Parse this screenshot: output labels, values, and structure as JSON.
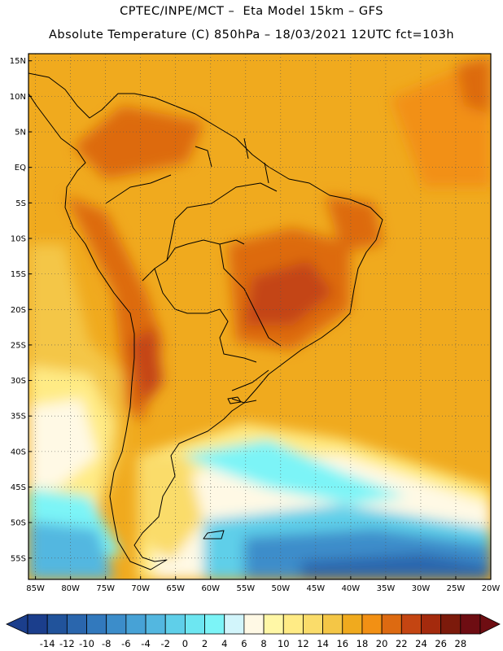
{
  "header": {
    "title_line1": "CPTEC/INPE/MCT –  Eta Model 15km – GFS",
    "title_line2": "Absolute Temperature (C) 850hPa – 18/03/2021 12UTC fct=103h"
  },
  "map": {
    "lat_labels": [
      "15N",
      "10N",
      "5N",
      "EQ",
      "5S",
      "10S",
      "15S",
      "20S",
      "25S",
      "30S",
      "35S",
      "40S",
      "45S",
      "50S",
      "55S"
    ],
    "lon_labels": [
      "85W",
      "80W",
      "75W",
      "70W",
      "65W",
      "60W",
      "55W",
      "50W",
      "45W",
      "40W",
      "35W",
      "30W",
      "25W",
      "20W"
    ],
    "lat_values": [
      15,
      10,
      5,
      0,
      -5,
      -10,
      -15,
      -20,
      -25,
      -30,
      -35,
      -40,
      -45,
      -50,
      -55
    ],
    "lon_values": [
      -85,
      -80,
      -75,
      -70,
      -65,
      -60,
      -55,
      -50,
      -45,
      -40,
      -35,
      -30,
      -25,
      -20
    ],
    "extent": {
      "lon_min": -86,
      "lon_max": -20,
      "lat_min": -58,
      "lat_max": 16
    }
  },
  "legend": {
    "ticks": [
      "-14",
      "-12",
      "-10",
      "-8",
      "-6",
      "-4",
      "-2",
      "0",
      "2",
      "4",
      "6",
      "8",
      "10",
      "12",
      "14",
      "16",
      "18",
      "20",
      "22",
      "24",
      "26",
      "28"
    ],
    "colors": [
      "#1b3e8c",
      "#21539b",
      "#2a66ad",
      "#3279bd",
      "#3c8dca",
      "#47a2d6",
      "#53b7e0",
      "#5fcfe9",
      "#6de6f1",
      "#7cf4f7",
      "#d2f5fb",
      "#fff9e5",
      "#fff7a6",
      "#ffeb85",
      "#fadc6a",
      "#f4c646",
      "#f0aa1e",
      "#f29014",
      "#dd6a11",
      "#c44512",
      "#a42a0d",
      "#7c1a0b",
      "#6e0d12"
    ]
  }
}
